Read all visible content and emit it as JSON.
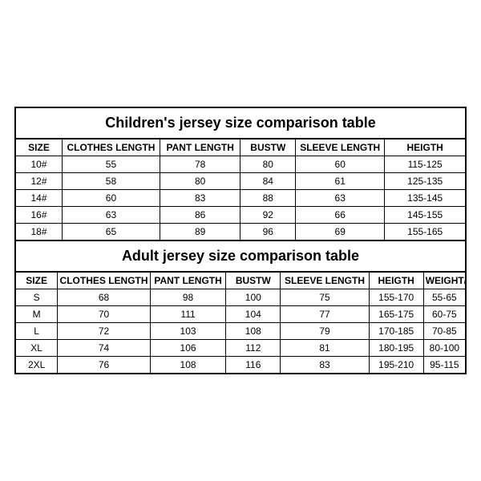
{
  "children_table": {
    "title": "Children's jersey size comparison table",
    "columns": [
      "SIZE",
      "CLOTHES LENGTH",
      "PANT LENGTH",
      "BUSTW",
      "SLEEVE LENGTH",
      "HEIGTH"
    ],
    "rows": [
      [
        "10#",
        "55",
        "78",
        "80",
        "60",
        "115-125"
      ],
      [
        "12#",
        "58",
        "80",
        "84",
        "61",
        "125-135"
      ],
      [
        "14#",
        "60",
        "83",
        "88",
        "63",
        "135-145"
      ],
      [
        "16#",
        "63",
        "86",
        "92",
        "66",
        "145-155"
      ],
      [
        "18#",
        "65",
        "89",
        "96",
        "69",
        "155-165"
      ]
    ]
  },
  "adult_table": {
    "title": "Adult jersey size comparison table",
    "columns": [
      "SIZE",
      "CLOTHES LENGTH",
      "PANT LENGTH",
      "BUSTW",
      "SLEEVE LENGTH",
      "HEIGTH",
      "WEIGHT/KG"
    ],
    "rows": [
      [
        "S",
        "68",
        "98",
        "100",
        "75",
        "155-170",
        "55-65"
      ],
      [
        "M",
        "70",
        "111",
        "104",
        "77",
        "165-175",
        "60-75"
      ],
      [
        "L",
        "72",
        "103",
        "108",
        "79",
        "170-185",
        "70-85"
      ],
      [
        "XL",
        "74",
        "106",
        "112",
        "81",
        "180-195",
        "80-100"
      ],
      [
        "2XL",
        "76",
        "108",
        "116",
        "83",
        "195-210",
        "95-115"
      ]
    ]
  },
  "styling": {
    "border_color": "#000000",
    "background_color": "#ffffff",
    "title_fontsize": 18,
    "cell_fontsize": 12,
    "font_family": "Arial, sans-serif"
  }
}
